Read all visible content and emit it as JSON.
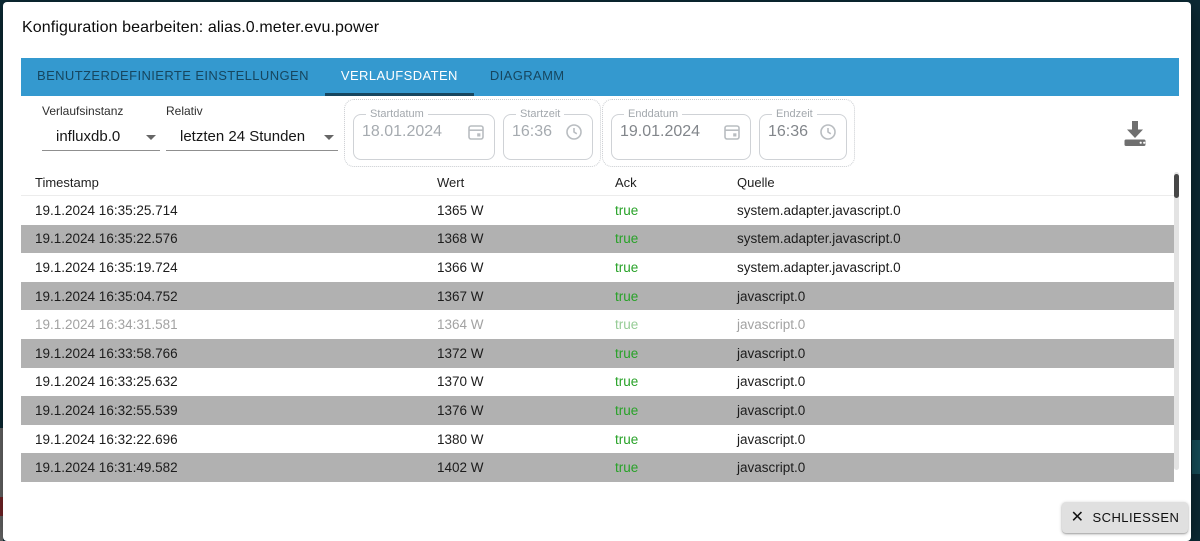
{
  "title": "Konfiguration bearbeiten: alias.0.meter.evu.power",
  "tabs": [
    {
      "label": "BENUTZERDEFINIERTE EINSTELLUNGEN",
      "active": false
    },
    {
      "label": "VERLAUFSDATEN",
      "active": true
    },
    {
      "label": "DIAGRAMM",
      "active": false
    }
  ],
  "filters": {
    "instance": {
      "label": "Verlaufsinstanz",
      "value": "influxdb.0"
    },
    "relative": {
      "label": "Relativ",
      "value": "letzten 24 Stunden"
    },
    "start_date": {
      "label": "Startdatum",
      "value": "18.01.2024"
    },
    "start_time": {
      "label": "Startzeit",
      "value": "16:36"
    },
    "end_date": {
      "label": "Enddatum",
      "value": "19.01.2024"
    },
    "end_time": {
      "label": "Endzeit",
      "value": "16:36"
    }
  },
  "table": {
    "columns": [
      "Timestamp",
      "Wert",
      "Ack",
      "Quelle"
    ],
    "rows": [
      {
        "timestamp": "19.1.2024 16:35:25.714",
        "wert": "1365 W",
        "ack": "true",
        "quelle": "system.adapter.javascript.0",
        "faded": false
      },
      {
        "timestamp": "19.1.2024 16:35:22.576",
        "wert": "1368 W",
        "ack": "true",
        "quelle": "system.adapter.javascript.0",
        "faded": false
      },
      {
        "timestamp": "19.1.2024 16:35:19.724",
        "wert": "1366 W",
        "ack": "true",
        "quelle": "system.adapter.javascript.0",
        "faded": false
      },
      {
        "timestamp": "19.1.2024 16:35:04.752",
        "wert": "1367 W",
        "ack": "true",
        "quelle": "javascript.0",
        "faded": false
      },
      {
        "timestamp": "19.1.2024 16:34:31.581",
        "wert": "1364 W",
        "ack": "true",
        "quelle": "javascript.0",
        "faded": true
      },
      {
        "timestamp": "19.1.2024 16:33:58.766",
        "wert": "1372 W",
        "ack": "true",
        "quelle": "javascript.0",
        "faded": false
      },
      {
        "timestamp": "19.1.2024 16:33:25.632",
        "wert": "1370 W",
        "ack": "true",
        "quelle": "javascript.0",
        "faded": false
      },
      {
        "timestamp": "19.1.2024 16:32:55.539",
        "wert": "1376 W",
        "ack": "true",
        "quelle": "javascript.0",
        "faded": false
      },
      {
        "timestamp": "19.1.2024 16:32:22.696",
        "wert": "1380 W",
        "ack": "true",
        "quelle": "javascript.0",
        "faded": false
      },
      {
        "timestamp": "19.1.2024 16:31:49.582",
        "wert": "1402 W",
        "ack": "true",
        "quelle": "javascript.0",
        "faded": false
      }
    ]
  },
  "close_button_label": "SCHLIESSEN",
  "icons": {
    "close": "✕",
    "calendar": "calendar-icon",
    "clock": "clock-icon",
    "download": "download-icon"
  },
  "colors": {
    "tab_bar": "#3499cf",
    "ack_true": "#28a228",
    "row_stripe": "#b1b1b1"
  }
}
